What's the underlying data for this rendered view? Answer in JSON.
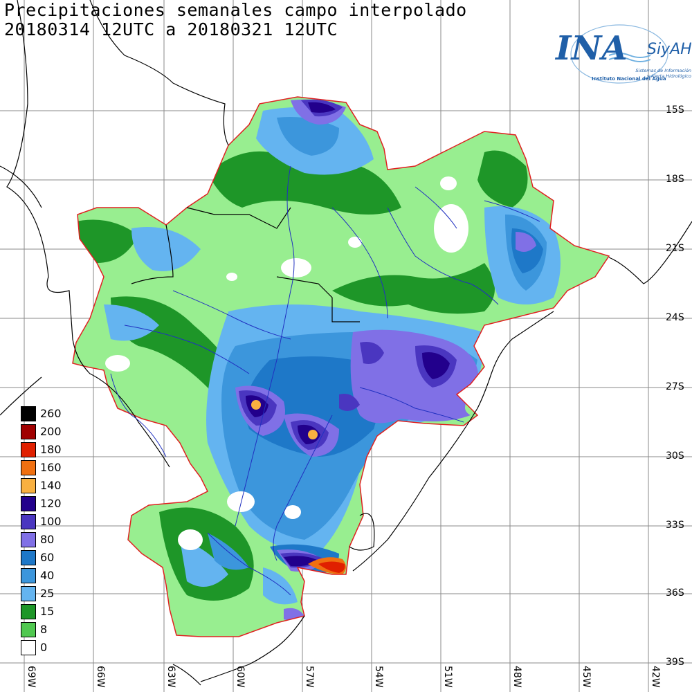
{
  "title": {
    "line1": "Precipitaciones semanales campo interpolado",
    "line2": "20180314 12UTC a 20180321 12UTC"
  },
  "logo": {
    "main": "INA",
    "brand": "SiyAH",
    "institute": "Instituto Nacional del Agua",
    "system_line1": "Sistemas de Información",
    "system_line2": "y Alerta Hidrológico"
  },
  "latitude_labels": [
    "15S",
    "18S",
    "21S",
    "24S",
    "27S",
    "30S",
    "33S",
    "36S",
    "39S"
  ],
  "longitude_labels": [
    "69W",
    "66W",
    "63W",
    "60W",
    "57W",
    "54W",
    "51W",
    "48W",
    "45W",
    "42W"
  ],
  "legend": {
    "unit_note": "",
    "items": [
      {
        "label": "260",
        "color": "#000000"
      },
      {
        "label": "200",
        "color": "#a00000"
      },
      {
        "label": "180",
        "color": "#e02000"
      },
      {
        "label": "160",
        "color": "#f07010"
      },
      {
        "label": "140",
        "color": "#f8b040"
      },
      {
        "label": "120",
        "color": "#22008c"
      },
      {
        "label": "100",
        "color": "#4a36c0"
      },
      {
        "label": "80",
        "color": "#8070e6"
      },
      {
        "label": "60",
        "color": "#1e78c8"
      },
      {
        "label": "40",
        "color": "#3c96dc"
      },
      {
        "label": "25",
        "color": "#64b4f0"
      },
      {
        "label": "15",
        "color": "#1e9628"
      },
      {
        "label": "8",
        "color": "#50c850"
      },
      {
        "label": "0",
        "color": "#ffffff"
      }
    ]
  },
  "colors": {
    "basin_outline": "#e02020",
    "grid": "#888888",
    "rivers": "#2030c0",
    "coast": "#000000",
    "light_green": "#98ee90"
  }
}
